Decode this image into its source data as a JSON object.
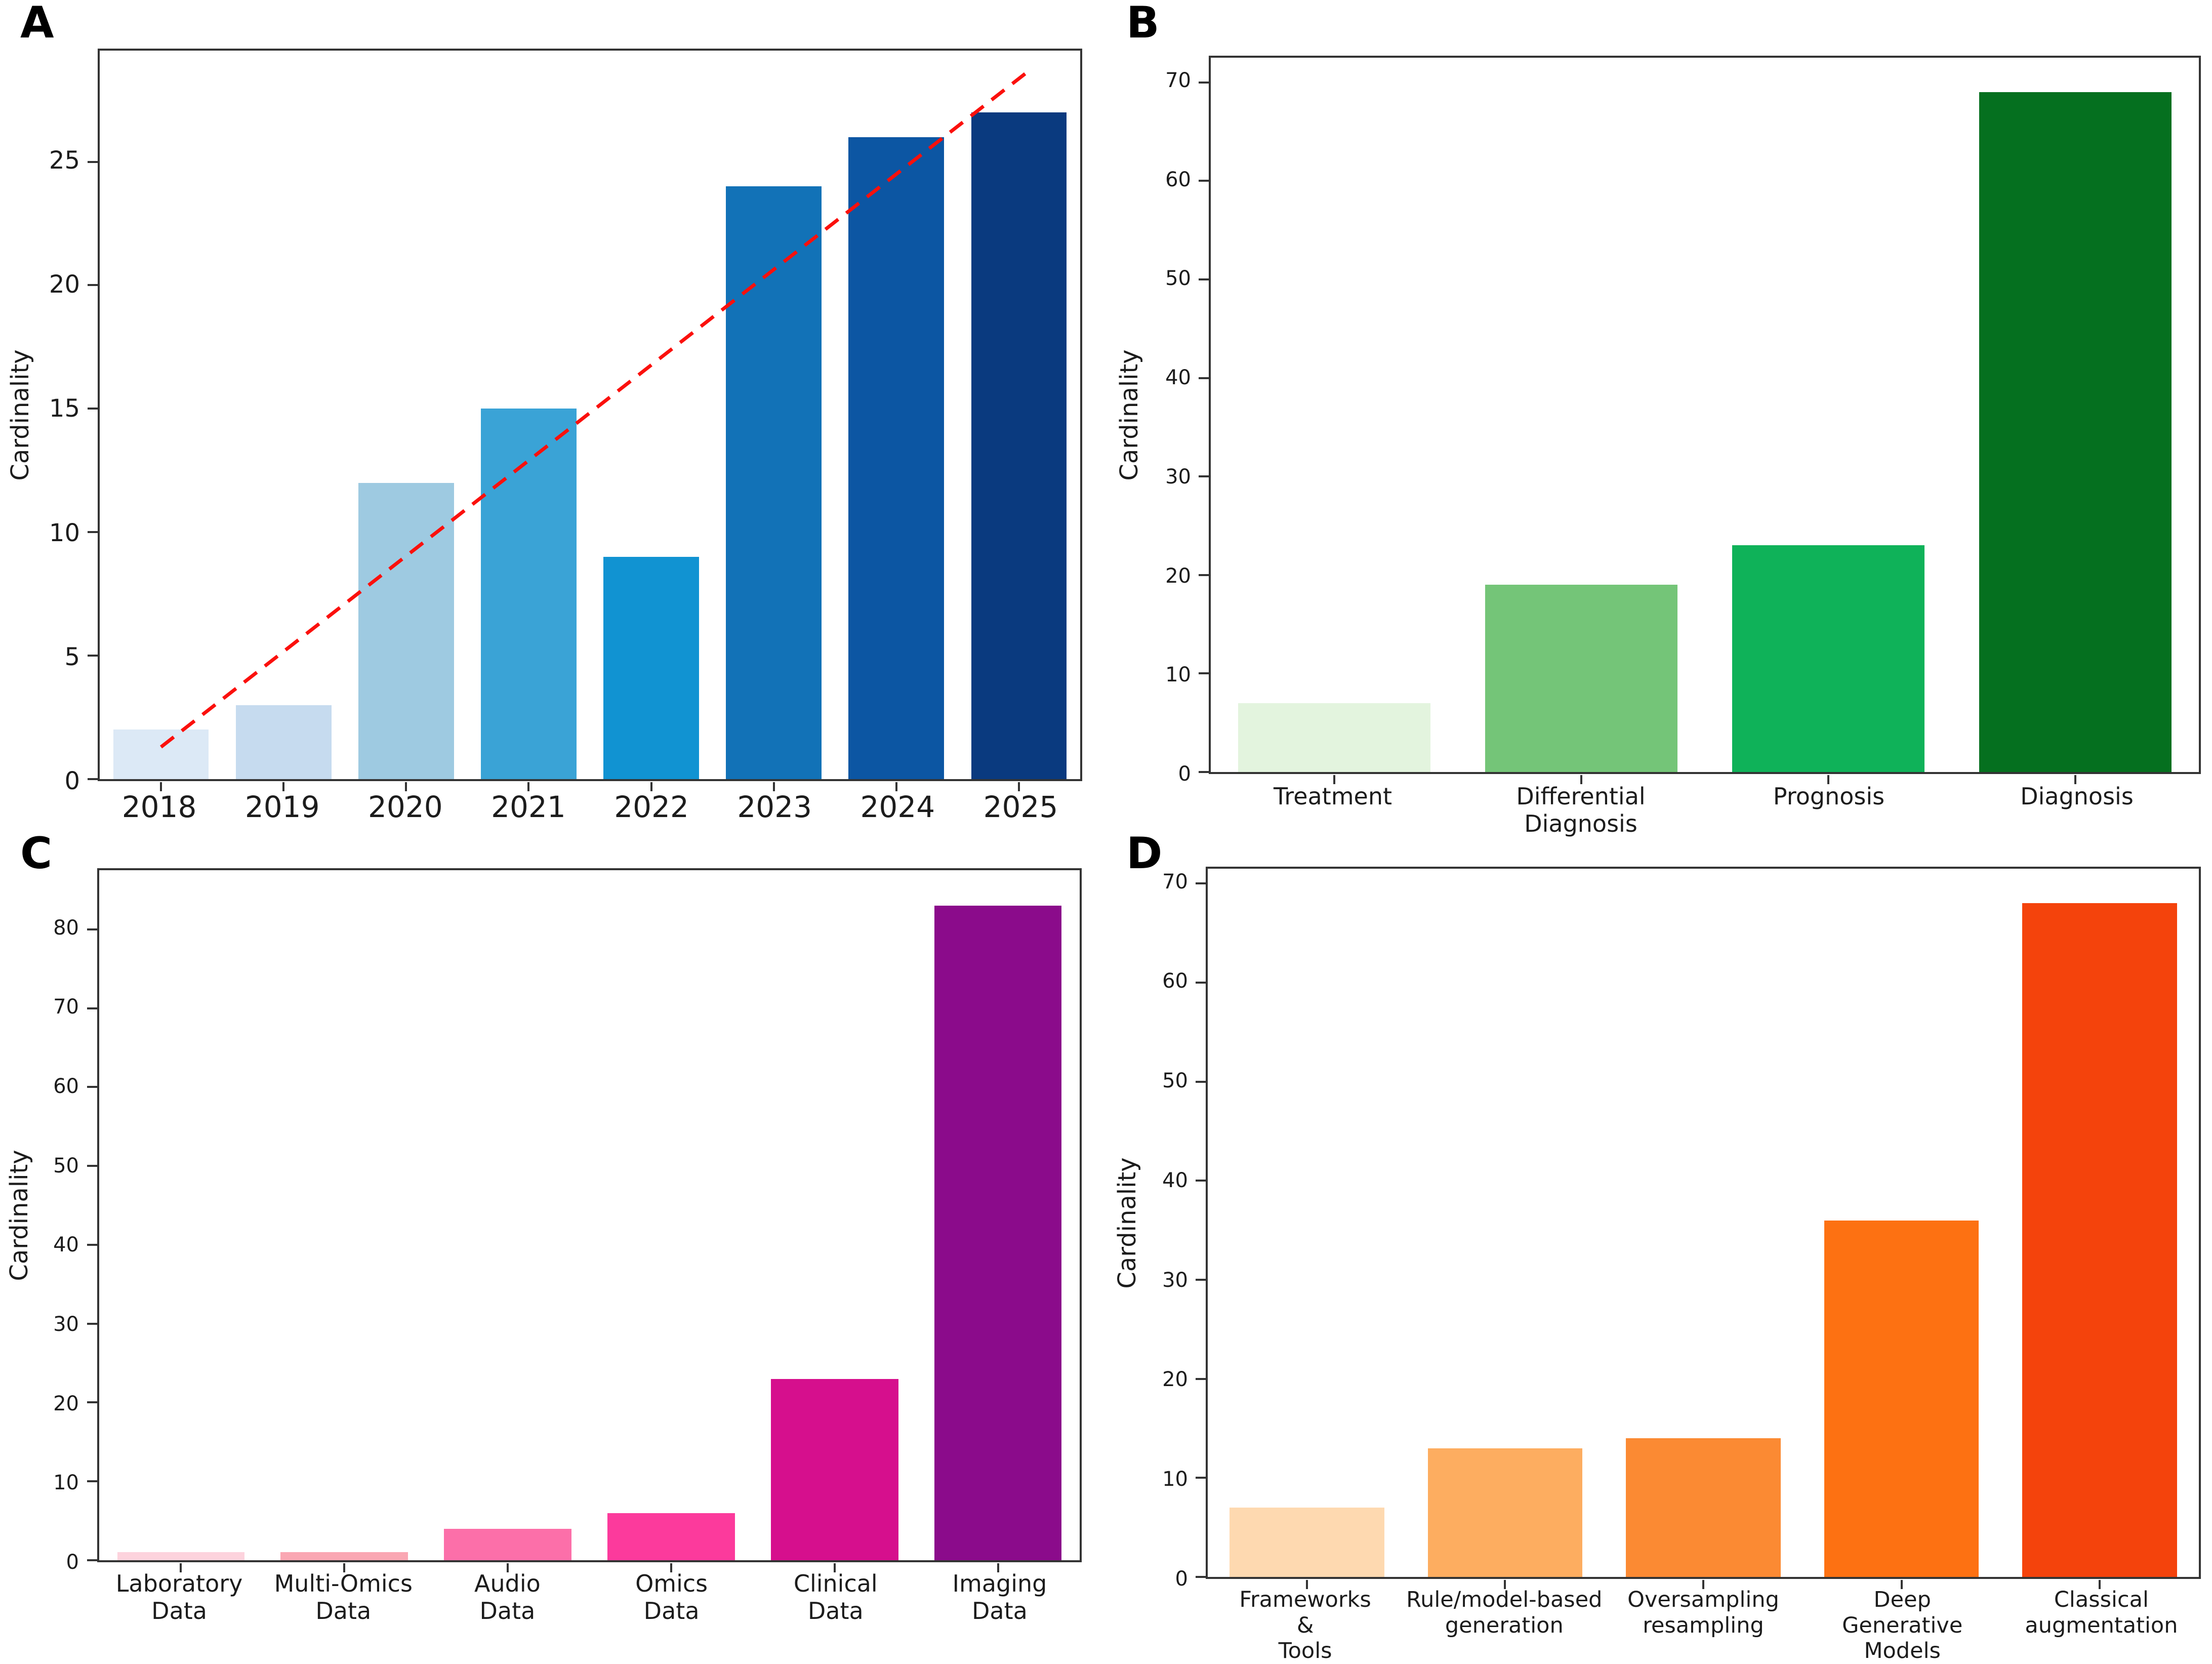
{
  "figure_labels": {
    "panel_a": "A",
    "panel_b": "B",
    "panel_c": "C",
    "panel_d": "D"
  },
  "axis_style": {
    "spine_color": "#333333",
    "tick_color": "#333333",
    "text_color": "#1c1c1c",
    "background": "#ffffff"
  },
  "chart_data": [
    {
      "panel": "A",
      "type": "bar",
      "title": "",
      "xlabel": "",
      "ylabel": "Cardinality",
      "categories": [
        "2018",
        "2019",
        "2020",
        "2021",
        "2022",
        "2023",
        "2024",
        "2025"
      ],
      "values": [
        2,
        3,
        12,
        15,
        9,
        24,
        26,
        27
      ],
      "bar_colors": [
        "#dce9f6",
        "#c6dbef",
        "#9ecae1",
        "#3aa3d6",
        "#1193d2",
        "#1272b7",
        "#0c56a3",
        "#0a3a7f"
      ],
      "yticks": [
        0,
        5,
        10,
        15,
        20,
        25
      ],
      "ylim": [
        0,
        29.5
      ],
      "grid": false,
      "legend": null,
      "trendline": {
        "color": "#fb100c",
        "style": "dashed",
        "x_start_frac": 0.0625,
        "y_start": 1.3,
        "x_end_frac": 0.945,
        "y_end": 28.6
      }
    },
    {
      "panel": "B",
      "type": "bar",
      "title": "",
      "xlabel": "",
      "ylabel": "Cardinality",
      "categories": [
        "Treatment",
        "Differential\nDiagnosis",
        "Prognosis",
        "Diagnosis"
      ],
      "values": [
        7,
        19,
        23,
        69
      ],
      "bar_colors": [
        "#e3f4de",
        "#74c578",
        "#0fb259",
        "#05701f"
      ],
      "yticks": [
        0,
        10,
        20,
        30,
        40,
        50,
        60,
        70
      ],
      "ylim": [
        0,
        72.5
      ],
      "grid": false,
      "legend": null,
      "trendline": null
    },
    {
      "panel": "C",
      "type": "bar",
      "title": "",
      "xlabel": "",
      "ylabel": "Cardinality",
      "categories": [
        "Laboratory\nData",
        "Multi-Omics\nData",
        "Audio\nData",
        "Omics\nData",
        "Clinical\nData",
        "Imaging\nData"
      ],
      "values": [
        1,
        1,
        4,
        6,
        23,
        83
      ],
      "bar_colors": [
        "#fdd3dd",
        "#faa7b3",
        "#fc6fa9",
        "#fc3a9c",
        "#d60f8d",
        "#8b0b8b"
      ],
      "yticks": [
        0,
        10,
        20,
        30,
        40,
        50,
        60,
        70,
        80
      ],
      "ylim": [
        0,
        87.5
      ],
      "grid": false,
      "legend": null,
      "trendline": null
    },
    {
      "panel": "D",
      "type": "bar",
      "title": "",
      "xlabel": "",
      "ylabel": "Cardinality",
      "categories": [
        "Frameworks\n&\nTools",
        "Rule/model-based\ngeneration",
        "Oversampling\nresampling",
        "Deep\nGenerative\nModels",
        "Classical\naugmentation"
      ],
      "values": [
        7,
        13,
        14,
        36,
        68
      ],
      "bar_colors": [
        "#fed9b0",
        "#fdad60",
        "#fb8a33",
        "#fd7112",
        "#f4430c"
      ],
      "yticks": [
        0,
        10,
        20,
        30,
        40,
        50,
        60,
        70
      ],
      "ylim": [
        0,
        71.5
      ],
      "grid": false,
      "legend": null,
      "trendline": null
    }
  ]
}
